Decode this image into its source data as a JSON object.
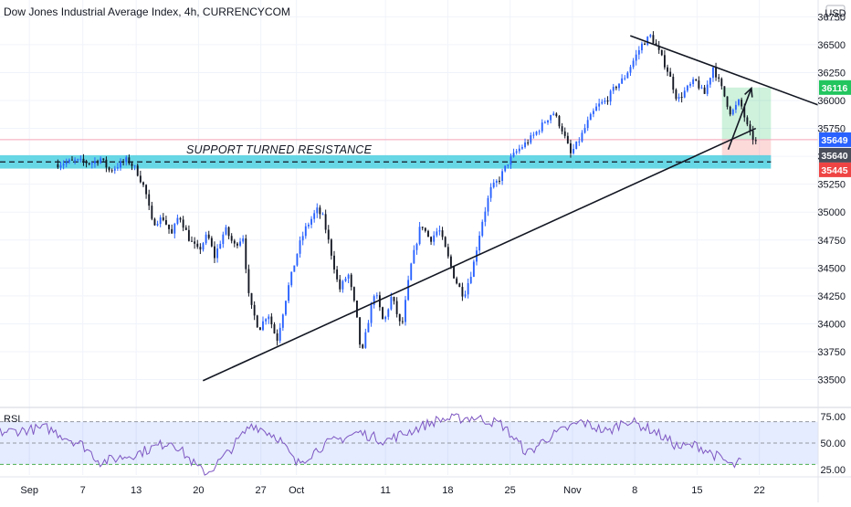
{
  "chart_data": {
    "type": "candlestick",
    "title": "Dow Jones Industrial Average Index, 4h, CURRENCYCOM",
    "currency_label": "USD",
    "price_axis": {
      "ylim": [
        33300,
        36900
      ],
      "ticks": [
        33500,
        33750,
        34000,
        34250,
        34500,
        34750,
        35000,
        35250,
        35500,
        35750,
        36000,
        36250,
        36500,
        36750
      ]
    },
    "x_axis": {
      "ticks": [
        {
          "label": "Sep",
          "day": 0
        },
        {
          "label": "7",
          "day": 6
        },
        {
          "label": "13",
          "day": 12
        },
        {
          "label": "20",
          "day": 19
        },
        {
          "label": "27",
          "day": 26
        },
        {
          "label": "Oct",
          "day": 30
        },
        {
          "label": "11",
          "day": 40
        },
        {
          "label": "18",
          "day": 47
        },
        {
          "label": "25",
          "day": 54
        },
        {
          "label": "Nov",
          "day": 61
        },
        {
          "label": "8",
          "day": 68
        },
        {
          "label": "15",
          "day": 75
        },
        {
          "label": "22",
          "day": 82
        }
      ],
      "xlim": [
        -3.3,
        88.6
      ]
    },
    "price_path_keypoints": [
      [
        -3.3,
        35430
      ],
      [
        -1.5,
        35460
      ],
      [
        0.5,
        35440
      ],
      [
        1.5,
        35480
      ],
      [
        2.5,
        35370
      ],
      [
        3.5,
        35420
      ],
      [
        4.5,
        35470
      ],
      [
        5.5,
        35380
      ],
      [
        6.5,
        35200
      ],
      [
        7.3,
        34900
      ],
      [
        8.5,
        34950
      ],
      [
        9.5,
        34800
      ],
      [
        10.3,
        34980
      ],
      [
        11.5,
        34750
      ],
      [
        12.5,
        34650
      ],
      [
        13.5,
        34800
      ],
      [
        14.3,
        34600
      ],
      [
        15.5,
        34850
      ],
      [
        16.5,
        34700
      ],
      [
        17.5,
        34780
      ],
      [
        18.2,
        34200
      ],
      [
        19.3,
        33950
      ],
      [
        20.3,
        34100
      ],
      [
        21.3,
        33850
      ],
      [
        22.5,
        34300
      ],
      [
        23.8,
        34700
      ],
      [
        24.5,
        34850
      ],
      [
        25.8,
        35020
      ],
      [
        26.5,
        34950
      ],
      [
        27.5,
        34600
      ],
      [
        28.3,
        34300
      ],
      [
        29.3,
        34450
      ],
      [
        30.2,
        34100
      ],
      [
        30.8,
        33700
      ],
      [
        31.5,
        34000
      ],
      [
        32.3,
        34300
      ],
      [
        33.3,
        34000
      ],
      [
        34.2,
        34250
      ],
      [
        35.3,
        33950
      ],
      [
        36.3,
        34500
      ],
      [
        37.5,
        34900
      ],
      [
        38.5,
        34750
      ],
      [
        39.5,
        34850
      ],
      [
        40.5,
        34600
      ],
      [
        41.3,
        34400
      ],
      [
        42.3,
        34250
      ],
      [
        43.3,
        34500
      ],
      [
        44.3,
        34900
      ],
      [
        45.3,
        35200
      ],
      [
        46.3,
        35300
      ],
      [
        47.3,
        35450
      ],
      [
        48.3,
        35550
      ],
      [
        49.3,
        35620
      ],
      [
        50.3,
        35700
      ],
      [
        51.3,
        35800
      ],
      [
        52.3,
        35900
      ],
      [
        53.3,
        35750
      ],
      [
        54.3,
        35520
      ],
      [
        55.3,
        35650
      ],
      [
        56.3,
        35820
      ],
      [
        57.3,
        35950
      ],
      [
        58.3,
        36000
      ],
      [
        59.3,
        36120
      ],
      [
        60.3,
        36200
      ],
      [
        61.3,
        36350
      ],
      [
        62.3,
        36500
      ],
      [
        63.3,
        36580
      ],
      [
        64.3,
        36420
      ],
      [
        65.3,
        36250
      ],
      [
        66.3,
        36000
      ],
      [
        67.3,
        36100
      ],
      [
        68.3,
        36180
      ],
      [
        69.3,
        36050
      ],
      [
        70.3,
        36300
      ],
      [
        71.3,
        36100
      ],
      [
        72.3,
        35880
      ],
      [
        73.3,
        36000
      ],
      [
        74.3,
        35720
      ],
      [
        75.3,
        35600
      ]
    ],
    "price_path_day_offset": 6.5,
    "rsi_path_keypoints": [
      [
        -3.3,
        60
      ],
      [
        2,
        64
      ],
      [
        6,
        48
      ],
      [
        8,
        32
      ],
      [
        12,
        40
      ],
      [
        16,
        52
      ],
      [
        19,
        26
      ],
      [
        20,
        22
      ],
      [
        22,
        38
      ],
      [
        25,
        68
      ],
      [
        28,
        55
      ],
      [
        30,
        30
      ],
      [
        33,
        48
      ],
      [
        37,
        60
      ],
      [
        40,
        52
      ],
      [
        43,
        62
      ],
      [
        46,
        72
      ],
      [
        50,
        74
      ],
      [
        53,
        68
      ],
      [
        56,
        40
      ],
      [
        58,
        54
      ],
      [
        62,
        70
      ],
      [
        65,
        60
      ],
      [
        67,
        72
      ],
      [
        70,
        62
      ],
      [
        73,
        46
      ],
      [
        75,
        48
      ],
      [
        78,
        34
      ],
      [
        79,
        28
      ],
      [
        80,
        33
      ]
    ],
    "rsi_path_day_offset": 0,
    "rsi": {
      "label": "RSI",
      "ylim": [
        20,
        80
      ],
      "ticks": [
        25.0,
        50.0,
        75.0
      ],
      "upper_band": 70,
      "middle": 50,
      "lower_band": 30
    },
    "support_zone": {
      "low": 35390,
      "high": 35510,
      "color": "#4dd0e1"
    },
    "support_dashed_level": 35450,
    "annotation": "SUPPORT TURNED RESISTANCE",
    "reference_line_price": 35649,
    "trendlines": [
      {
        "name": "rising-support",
        "from": [
          19.5,
          33490
        ],
        "to": [
          81.6,
          35750
        ]
      },
      {
        "name": "falling-resistance",
        "from": [
          67.5,
          36580
        ],
        "to": [
          88.6,
          35960
        ]
      }
    ],
    "projection_arrow": {
      "from": [
        78.5,
        35560
      ],
      "to": [
        81.1,
        36110
      ]
    },
    "target_box": {
      "day_start": 77.8,
      "day_end": 83.3,
      "price_top": 36116,
      "price_mid": 35649,
      "price_bottom": 35445
    },
    "price_badges": [
      {
        "value": "36116",
        "color": "#22c55e"
      },
      {
        "value": "35649",
        "color": "#2962ff"
      },
      {
        "value": "35640",
        "color": "#4a4e5a"
      },
      {
        "value": "35445",
        "color": "#ef4444"
      }
    ]
  }
}
